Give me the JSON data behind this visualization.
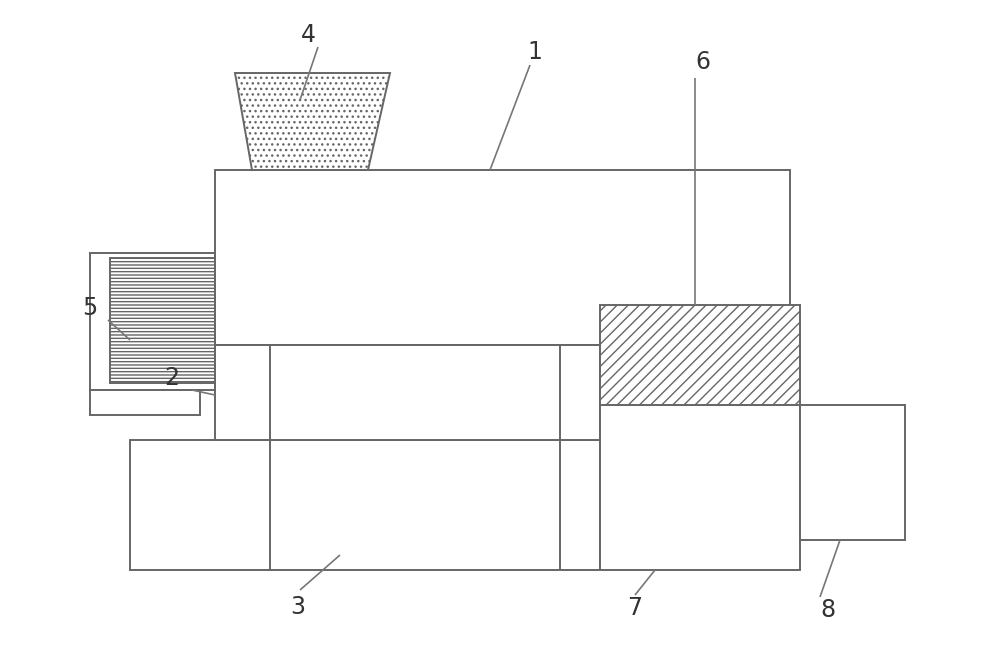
{
  "bg_color": "#ffffff",
  "line_color": "#666666",
  "line_width": 1.4,
  "fig_width": 10.0,
  "fig_height": 6.7,
  "label_fontsize": 17,
  "text_color": "#333333",
  "leader_color": "#777777",
  "leader_lw": 1.2
}
